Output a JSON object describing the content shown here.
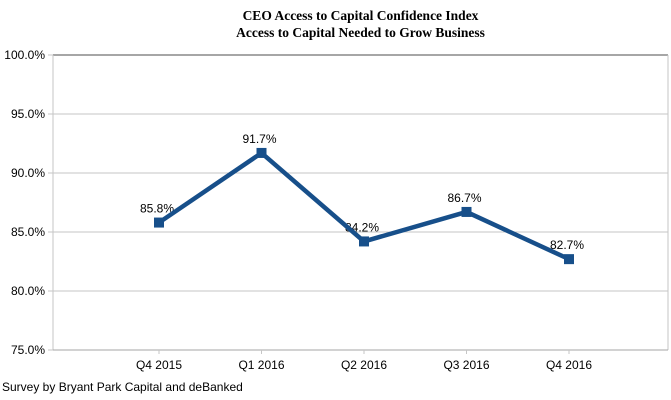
{
  "chart_data": {
    "type": "line",
    "title": "CEO Access to Capital Confidence Index",
    "subtitle": "Access to Capital Needed to Grow Business",
    "categories": [
      "Q4 2015",
      "Q1 2016",
      "Q2 2016",
      "Q3 2016",
      "Q4 2016"
    ],
    "values": [
      85.8,
      91.7,
      84.2,
      86.7,
      82.7
    ],
    "data_labels": [
      "85.8%",
      "91.7%",
      "84.2%",
      "86.7%",
      "82.7%"
    ],
    "y_tick_labels": [
      "100.0%",
      "95.0%",
      "90.0%",
      "85.0%",
      "80.0%",
      "75.0%"
    ],
    "ylim": [
      75,
      100
    ],
    "y_interval": 5,
    "grid": true,
    "legend": "none",
    "marker_shape": "square",
    "line_color": "#174F8A",
    "gridline_color": "#C6C6C6",
    "axis_color": "#A6A6A6",
    "footer": "Survey by Bryant Park Capital and deBanked"
  }
}
